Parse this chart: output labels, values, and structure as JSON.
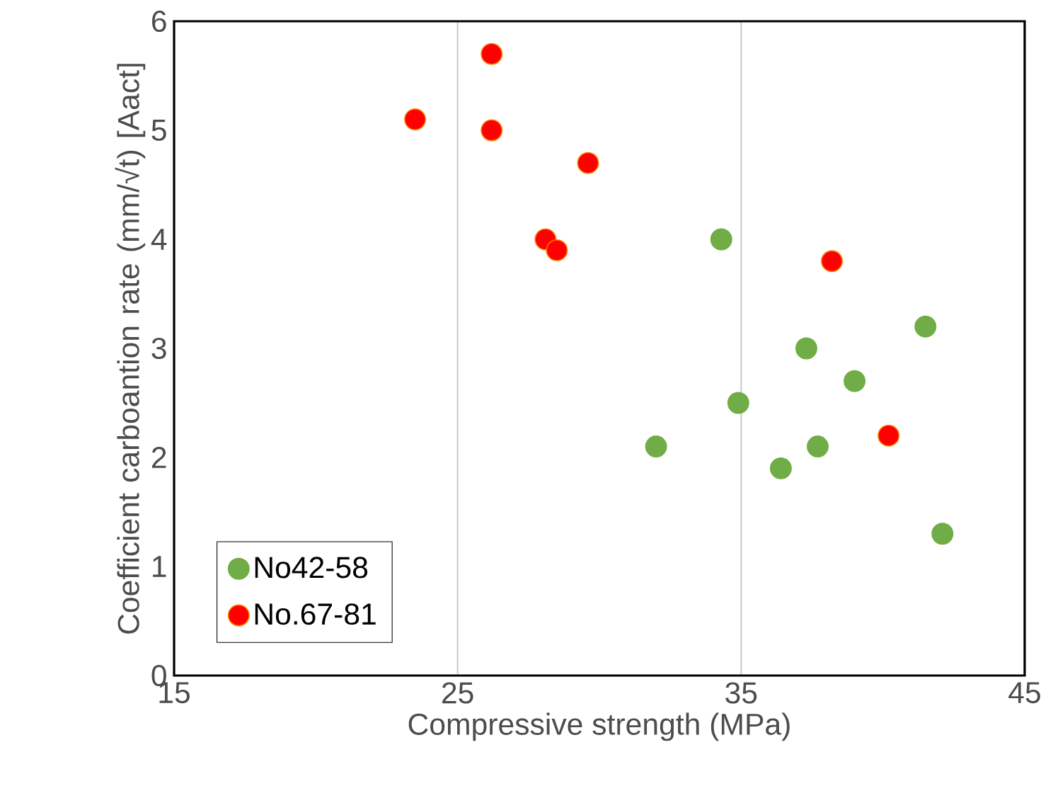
{
  "chart_data": {
    "type": "scatter",
    "xlabel": "Compressive strength (MPa)",
    "ylabel": "Coefficient carboantion rate (mm/√t) [Aact]",
    "xlim": [
      15,
      45
    ],
    "ylim": [
      0,
      6
    ],
    "xticks": [
      15,
      25,
      35,
      45
    ],
    "yticks": [
      0,
      1,
      2,
      3,
      4,
      5,
      6
    ],
    "grid": "x",
    "legend": "bottom left",
    "series": [
      {
        "name": "No42-58",
        "color": "#70ad47",
        "x": [
          32.0,
          34.3,
          34.9,
          36.4,
          37.3,
          37.7,
          39.0,
          41.5,
          42.1
        ],
        "values": [
          2.1,
          4.0,
          2.5,
          1.9,
          3.0,
          2.1,
          2.7,
          3.2,
          1.3
        ]
      },
      {
        "name": "No.67-81",
        "color": "#ff0000",
        "x": [
          23.5,
          26.2,
          26.2,
          29.6,
          28.1,
          28.5,
          38.2,
          40.2
        ],
        "values": [
          5.1,
          5.7,
          5.0,
          4.7,
          4.0,
          3.9,
          3.8,
          2.2
        ]
      }
    ]
  }
}
